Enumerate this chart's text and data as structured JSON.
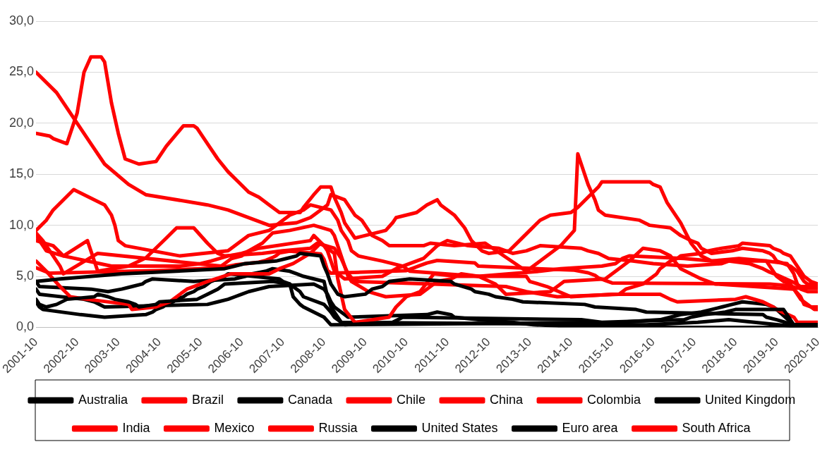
{
  "chart_data": {
    "type": "line",
    "legend": "bottom",
    "grid": "y",
    "marker": "none",
    "line_style": "solid",
    "xlim": [
      "2001-10",
      "2020-10"
    ],
    "xticks": [
      "2001-10",
      "2002-10",
      "2003-10",
      "2004-10",
      "2005-10",
      "2006-10",
      "2007-10",
      "2008-10",
      "2009-10",
      "2010-10",
      "2011-10",
      "2012-10",
      "2013-10",
      "2014-10",
      "2015-10",
      "2016-10",
      "2017-10",
      "2018-10",
      "2019-10",
      "2020-10"
    ],
    "ylim": [
      0,
      30
    ],
    "yticks": [
      {
        "value": 0,
        "label": "0,0"
      },
      {
        "value": 5,
        "label": "5,0"
      },
      {
        "value": 10,
        "label": "10,0"
      },
      {
        "value": 15,
        "label": "15,0"
      },
      {
        "value": 20,
        "label": "20,0"
      },
      {
        "value": 25,
        "label": "25,0"
      },
      {
        "value": 30,
        "label": "30,0"
      }
    ],
    "series": [
      {
        "name": "Australia",
        "color": "#000000",
        "x": [
          "2001-10",
          "2002-05",
          "2003-11",
          "2005-03",
          "2006-05",
          "2006-08",
          "2006-11",
          "2007-08",
          "2007-11",
          "2008-02",
          "2008-03",
          "2008-09",
          "2008-10",
          "2008-11",
          "2008-12",
          "2009-02",
          "2009-04",
          "2009-10",
          "2009-12",
          "2010-03",
          "2010-05",
          "2010-11",
          "2011-11",
          "2011-12",
          "2012-05",
          "2012-06",
          "2012-10",
          "2012-12",
          "2013-05",
          "2013-08",
          "2015-02",
          "2015-05",
          "2016-05",
          "2016-08",
          "2019-06",
          "2019-07",
          "2019-10",
          "2020-03",
          "2020-10"
        ],
        "values": [
          4.5,
          4.75,
          5.25,
          5.5,
          5.75,
          6.0,
          6.25,
          6.5,
          6.75,
          7.0,
          7.25,
          7.0,
          6.0,
          5.25,
          4.25,
          3.25,
          3.0,
          3.25,
          3.75,
          4.0,
          4.5,
          4.75,
          4.5,
          4.25,
          3.75,
          3.5,
          3.25,
          3.0,
          2.75,
          2.5,
          2.25,
          2.0,
          1.75,
          1.5,
          1.25,
          1.0,
          0.75,
          0.25,
          0.25
        ]
      },
      {
        "name": "Brazil",
        "color": "#ff0000",
        "x": [
          "2001-10",
          "2002-02",
          "2002-03",
          "2002-07",
          "2002-10",
          "2002-12",
          "2003-02",
          "2003-05",
          "2003-06",
          "2003-08",
          "2003-10",
          "2003-12",
          "2004-04",
          "2004-09",
          "2004-12",
          "2005-05",
          "2005-08",
          "2005-09",
          "2005-12",
          "2006-03",
          "2006-06",
          "2006-09",
          "2006-12",
          "2007-03",
          "2007-06",
          "2007-09",
          "2008-03",
          "2008-04",
          "2008-07",
          "2008-09",
          "2008-12",
          "2009-01",
          "2009-03",
          "2009-04",
          "2009-06",
          "2009-07",
          "2010-04",
          "2010-06",
          "2010-07",
          "2011-01",
          "2011-04",
          "2011-07",
          "2011-08",
          "2011-10",
          "2011-12",
          "2012-03",
          "2012-05",
          "2012-08",
          "2012-10",
          "2013-04",
          "2013-07",
          "2013-10",
          "2014-01",
          "2014-04",
          "2014-10",
          "2014-12",
          "2015-03",
          "2015-06",
          "2015-07",
          "2016-09",
          "2016-10",
          "2016-12",
          "2017-02",
          "2017-04",
          "2017-06",
          "2017-09",
          "2017-12",
          "2018-03",
          "2019-07",
          "2019-08",
          "2019-10",
          "2019-12",
          "2020-02",
          "2020-03",
          "2020-05",
          "2020-06",
          "2020-08",
          "2020-10"
        ],
        "values": [
          19.0,
          18.75,
          18.5,
          18.0,
          21.0,
          25.0,
          26.5,
          26.5,
          26.0,
          22.0,
          19.0,
          16.5,
          16.0,
          16.25,
          17.75,
          19.75,
          19.75,
          19.5,
          18.0,
          16.5,
          15.25,
          14.25,
          13.25,
          12.75,
          12.0,
          11.25,
          11.25,
          11.75,
          13.0,
          13.75,
          13.75,
          12.75,
          11.25,
          10.25,
          9.25,
          8.75,
          9.5,
          10.25,
          10.75,
          11.25,
          12.0,
          12.5,
          12.0,
          11.5,
          11.0,
          9.75,
          8.5,
          7.5,
          7.25,
          7.5,
          8.5,
          9.5,
          10.5,
          11.0,
          11.25,
          11.75,
          12.75,
          13.75,
          14.25,
          14.25,
          14.0,
          13.75,
          12.25,
          11.25,
          10.25,
          8.25,
          7.0,
          6.5,
          6.5,
          6.0,
          5.0,
          4.5,
          4.25,
          3.75,
          3.0,
          2.25,
          2.0,
          2.0
        ]
      },
      {
        "name": "Canada",
        "color": "#000000",
        "x": [
          "2001-10",
          "2001-11",
          "2002-01",
          "2002-04",
          "2002-07",
          "2003-03",
          "2003-04",
          "2003-07",
          "2003-09",
          "2004-01",
          "2004-03",
          "2004-04",
          "2004-09",
          "2004-10",
          "2005-09",
          "2005-12",
          "2006-03",
          "2006-05",
          "2007-07",
          "2007-12",
          "2008-03",
          "2008-04",
          "2008-10",
          "2008-12",
          "2009-01",
          "2009-03",
          "2009-04",
          "2010-06",
          "2010-09",
          "2015-01",
          "2015-07",
          "2017-07",
          "2017-09",
          "2018-01",
          "2018-07",
          "2018-10",
          "2019-12",
          "2020-03",
          "2020-10"
        ],
        "values": [
          2.75,
          2.25,
          2.0,
          2.25,
          2.75,
          3.0,
          3.25,
          3.0,
          2.75,
          2.5,
          2.25,
          2.0,
          2.25,
          2.5,
          2.75,
          3.25,
          3.75,
          4.25,
          4.5,
          4.25,
          3.5,
          3.0,
          2.25,
          1.5,
          1.0,
          0.5,
          0.25,
          0.5,
          1.0,
          0.75,
          0.5,
          0.75,
          1.0,
          1.25,
          1.5,
          1.75,
          1.75,
          0.25,
          0.25
        ]
      },
      {
        "name": "Chile",
        "color": "#ff0000",
        "x": [
          "2001-10",
          "2002-01",
          "2002-05",
          "2002-08",
          "2003-01",
          "2004-01",
          "2004-02",
          "2004-09",
          "2005-01",
          "2005-06",
          "2005-12",
          "2006-07",
          "2007-06",
          "2007-09",
          "2008-01",
          "2008-06",
          "2008-09",
          "2009-01",
          "2009-02",
          "2009-04",
          "2009-07",
          "2010-05",
          "2010-07",
          "2010-10",
          "2011-02",
          "2011-06",
          "2012-01",
          "2013-09",
          "2013-10",
          "2014-03",
          "2014-10",
          "2015-10",
          "2016-12",
          "2017-03",
          "2017-05",
          "2018-10",
          "2019-01",
          "2019-06",
          "2019-09",
          "2019-10",
          "2020-03",
          "2020-04",
          "2020-10"
        ],
        "values": [
          6.5,
          5.5,
          4.0,
          3.0,
          2.75,
          2.25,
          1.75,
          2.0,
          2.5,
          3.75,
          4.5,
          5.25,
          5.25,
          5.75,
          6.25,
          7.25,
          8.25,
          7.25,
          4.75,
          1.75,
          0.5,
          1.0,
          2.0,
          3.0,
          3.5,
          5.25,
          5.0,
          5.0,
          4.5,
          4.0,
          3.0,
          3.25,
          3.25,
          2.75,
          2.5,
          2.75,
          3.0,
          2.5,
          2.0,
          1.75,
          1.0,
          0.5,
          0.5
        ]
      },
      {
        "name": "China",
        "color": "#ff0000",
        "x": [
          "2001-10",
          "2002-02",
          "2004-10",
          "2006-04",
          "2006-08",
          "2007-03",
          "2007-05",
          "2007-07",
          "2007-08",
          "2007-09",
          "2007-12",
          "2008-09",
          "2008-10",
          "2008-11",
          "2008-12",
          "2010-10",
          "2010-12",
          "2011-02",
          "2011-04",
          "2011-07",
          "2012-06",
          "2012-07",
          "2014-11",
          "2015-03",
          "2015-05",
          "2015-06",
          "2015-08",
          "2015-10",
          "2019-08",
          "2019-11",
          "2020-02",
          "2020-04",
          "2020-10"
        ],
        "values": [
          5.85,
          5.31,
          5.58,
          5.85,
          6.12,
          6.39,
          6.57,
          6.84,
          7.02,
          7.29,
          7.47,
          7.2,
          6.66,
          5.58,
          5.31,
          5.56,
          5.81,
          6.06,
          6.31,
          6.56,
          6.31,
          6.0,
          5.6,
          5.35,
          5.1,
          4.85,
          4.6,
          4.35,
          4.25,
          4.15,
          4.05,
          3.85,
          3.85
        ]
      },
      {
        "name": "Colombia",
        "color": "#ff0000",
        "x": [
          "2001-10",
          "2001-12",
          "2002-03",
          "2002-05",
          "2002-06",
          "2003-04",
          "2006-04",
          "2006-05",
          "2006-07",
          "2006-10",
          "2006-12",
          "2007-04",
          "2007-07",
          "2007-12",
          "2008-07",
          "2008-12",
          "2009-01",
          "2009-03",
          "2009-05",
          "2009-06",
          "2009-11",
          "2010-04",
          "2011-02",
          "2011-07",
          "2011-11",
          "2012-02",
          "2012-07",
          "2012-12",
          "2013-03",
          "2014-04",
          "2014-08",
          "2015-08",
          "2015-10",
          "2015-12",
          "2016-03",
          "2016-07",
          "2016-12",
          "2017-03",
          "2017-06",
          "2017-09",
          "2017-12",
          "2018-04",
          "2020-03",
          "2020-05",
          "2020-09",
          "2020-10"
        ],
        "values": [
          9.25,
          8.5,
          7.0,
          6.0,
          5.25,
          7.25,
          6.0,
          6.25,
          6.75,
          7.0,
          7.5,
          8.25,
          9.25,
          9.5,
          10.0,
          9.5,
          9.0,
          7.0,
          5.0,
          4.5,
          3.5,
          3.0,
          3.25,
          4.5,
          4.75,
          5.25,
          5.0,
          4.25,
          3.25,
          3.5,
          4.5,
          4.75,
          5.25,
          5.75,
          6.5,
          7.75,
          7.5,
          7.0,
          5.75,
          5.25,
          4.75,
          4.25,
          3.75,
          2.75,
          1.75,
          1.75
        ]
      },
      {
        "name": "United Kingdom",
        "color": "#000000",
        "x": [
          "2001-10",
          "2001-11",
          "2003-02",
          "2003-07",
          "2003-11",
          "2004-02",
          "2004-05",
          "2004-06",
          "2004-08",
          "2005-08",
          "2006-08",
          "2006-11",
          "2007-01",
          "2007-05",
          "2007-07",
          "2007-12",
          "2008-02",
          "2008-04",
          "2008-10",
          "2008-11",
          "2008-12",
          "2009-01",
          "2009-02",
          "2009-03",
          "2016-08",
          "2017-11",
          "2018-08",
          "2020-03",
          "2020-10"
        ],
        "values": [
          4.5,
          4.0,
          3.75,
          3.5,
          3.75,
          4.0,
          4.25,
          4.5,
          4.75,
          4.5,
          4.75,
          5.0,
          5.25,
          5.5,
          5.75,
          5.5,
          5.25,
          5.0,
          4.5,
          3.0,
          2.0,
          1.5,
          1.0,
          0.5,
          0.25,
          0.5,
          0.75,
          0.1,
          0.1
        ]
      },
      {
        "name": "India",
        "color": "#ff0000",
        "x": [
          "2001-10",
          "2002-03",
          "2002-06",
          "2003-08",
          "2005-04",
          "2005-10",
          "2006-01",
          "2006-06",
          "2006-10",
          "2007-03",
          "2008-06",
          "2008-07",
          "2008-10",
          "2008-11",
          "2008-12",
          "2009-01",
          "2009-03",
          "2009-04",
          "2010-03",
          "2010-07",
          "2010-11",
          "2011-03",
          "2011-07",
          "2011-10",
          "2012-04",
          "2013-01",
          "2013-05",
          "2013-09",
          "2014-01",
          "2015-01",
          "2015-03",
          "2015-06",
          "2015-09",
          "2016-04",
          "2016-10",
          "2017-08",
          "2018-06",
          "2018-08",
          "2019-02",
          "2019-04",
          "2019-06",
          "2019-08",
          "2019-10",
          "2020-03",
          "2020-05",
          "2020-10"
        ],
        "values": [
          8.5,
          8.0,
          7.0,
          6.0,
          6.0,
          6.25,
          6.5,
          7.0,
          7.25,
          7.75,
          8.5,
          9.0,
          8.0,
          7.5,
          6.5,
          5.5,
          5.0,
          4.75,
          5.0,
          5.75,
          6.25,
          6.75,
          8.0,
          8.5,
          8.0,
          7.75,
          7.25,
          7.5,
          8.0,
          7.75,
          7.5,
          7.25,
          6.75,
          6.5,
          6.25,
          6.0,
          6.25,
          6.5,
          6.25,
          6.0,
          5.75,
          5.4,
          5.15,
          4.4,
          4.0,
          4.0
        ]
      },
      {
        "name": "Mexico",
        "color": "#ff0000",
        "x": [
          "2001-10",
          "2002-01",
          "2002-06",
          "2003-01",
          "2003-04",
          "2004-01",
          "2004-06",
          "2004-12",
          "2005-03",
          "2005-08",
          "2005-12",
          "2006-03",
          "2006-05",
          "2007-04",
          "2007-10",
          "2008-06",
          "2008-08",
          "2009-01",
          "2009-03",
          "2009-05",
          "2009-07",
          "2013-03",
          "2013-09",
          "2014-06",
          "2015-12",
          "2016-02",
          "2016-07",
          "2016-09",
          "2016-11",
          "2016-12",
          "2017-02",
          "2017-03",
          "2017-05",
          "2017-06",
          "2017-12",
          "2018-02",
          "2018-06",
          "2018-11",
          "2018-12",
          "2019-08",
          "2019-09",
          "2019-11",
          "2019-12",
          "2020-02",
          "2020-03",
          "2020-04",
          "2020-05",
          "2020-06",
          "2020-08",
          "2020-10"
        ],
        "values": [
          9.0,
          7.5,
          7.0,
          8.5,
          5.5,
          6.0,
          6.8,
          8.75,
          9.75,
          9.75,
          8.25,
          7.25,
          7.0,
          7.25,
          7.5,
          7.75,
          8.25,
          7.75,
          6.75,
          5.25,
          4.5,
          4.0,
          3.5,
          3.0,
          3.25,
          3.75,
          4.25,
          4.75,
          5.25,
          5.75,
          6.25,
          6.5,
          6.75,
          7.0,
          7.25,
          7.5,
          7.75,
          8.0,
          8.25,
          8.0,
          7.75,
          7.5,
          7.25,
          7.0,
          6.5,
          6.0,
          5.5,
          5.0,
          4.5,
          4.25
        ]
      },
      {
        "name": "Russia",
        "color": "#ff0000",
        "x": [
          "2001-10",
          "2002-04",
          "2002-08",
          "2003-02",
          "2003-06",
          "2004-01",
          "2004-06",
          "2005-12",
          "2006-06",
          "2006-10",
          "2007-06",
          "2008-02",
          "2008-04",
          "2008-06",
          "2008-07",
          "2008-11",
          "2008-12",
          "2009-04",
          "2009-05",
          "2009-06",
          "2009-07",
          "2009-08",
          "2009-09",
          "2009-10",
          "2009-11",
          "2009-12",
          "2010-03",
          "2010-05",
          "2011-03",
          "2011-05",
          "2011-12",
          "2012-09",
          "2013-09",
          "2014-03",
          "2014-07",
          "2014-11",
          "2014-12",
          "2015-02",
          "2015-03",
          "2015-05",
          "2015-06",
          "2015-08",
          "2016-06",
          "2016-09",
          "2017-03",
          "2017-05",
          "2017-06",
          "2017-09",
          "2017-11",
          "2017-12",
          "2018-03",
          "2018-09",
          "2018-12",
          "2019-06",
          "2019-08",
          "2019-09",
          "2019-10",
          "2019-12",
          "2020-02",
          "2020-04",
          "2020-06",
          "2020-07",
          "2020-10"
        ],
        "values": [
          25.0,
          23.0,
          21.0,
          18.0,
          16.0,
          14.0,
          13.0,
          12.0,
          11.5,
          11.0,
          10.0,
          10.25,
          10.5,
          10.75,
          11.0,
          12.0,
          13.0,
          12.5,
          12.0,
          11.5,
          11.0,
          10.75,
          10.5,
          10.0,
          9.5,
          9.0,
          8.5,
          8.0,
          8.0,
          8.25,
          8.0,
          8.25,
          5.5,
          7.0,
          8.0,
          9.5,
          17.0,
          15.0,
          14.0,
          12.5,
          11.5,
          11.0,
          10.5,
          10.0,
          9.75,
          9.25,
          9.0,
          8.5,
          8.25,
          7.75,
          7.25,
          7.5,
          7.75,
          7.5,
          7.25,
          7.0,
          6.5,
          6.25,
          6.0,
          5.5,
          4.5,
          4.25,
          4.25
        ]
      },
      {
        "name": "United States",
        "color": "#000000",
        "x": [
          "2001-10",
          "2001-11",
          "2001-12",
          "2002-11",
          "2003-06",
          "2004-06",
          "2004-08",
          "2004-09",
          "2004-11",
          "2004-12",
          "2005-02",
          "2005-03",
          "2005-05",
          "2005-06",
          "2005-08",
          "2005-09",
          "2005-11",
          "2005-12",
          "2006-01",
          "2006-03",
          "2006-05",
          "2006-06",
          "2007-09",
          "2007-10",
          "2007-12",
          "2008-01",
          "2008-03",
          "2008-04",
          "2008-10",
          "2008-12",
          "2015-12",
          "2016-12",
          "2017-03",
          "2017-06",
          "2017-12",
          "2018-03",
          "2018-06",
          "2018-09",
          "2018-12",
          "2019-07",
          "2019-09",
          "2019-10",
          "2020-03",
          "2020-10"
        ],
        "values": [
          2.5,
          2.0,
          1.75,
          1.25,
          1.0,
          1.25,
          1.5,
          1.75,
          2.0,
          2.25,
          2.5,
          2.75,
          3.0,
          3.25,
          3.5,
          3.75,
          4.0,
          4.25,
          4.5,
          4.75,
          5.0,
          5.25,
          4.75,
          4.5,
          4.25,
          3.0,
          2.25,
          2.0,
          1.0,
          0.25,
          0.5,
          0.75,
          1.0,
          1.25,
          1.5,
          1.75,
          2.0,
          2.25,
          2.5,
          2.25,
          2.0,
          1.75,
          0.25,
          0.25
        ]
      },
      {
        "name": "Euro area",
        "color": "#000000",
        "x": [
          "2001-10",
          "2001-11",
          "2002-12",
          "2003-03",
          "2003-06",
          "2005-12",
          "2006-03",
          "2006-06",
          "2006-08",
          "2006-10",
          "2006-12",
          "2007-03",
          "2007-06",
          "2008-07",
          "2008-10",
          "2008-11",
          "2008-12",
          "2009-01",
          "2009-03",
          "2009-04",
          "2009-05",
          "2011-04",
          "2011-07",
          "2011-11",
          "2011-12",
          "2012-07",
          "2013-05",
          "2013-11",
          "2014-06",
          "2014-09",
          "2016-03",
          "2020-10"
        ],
        "values": [
          3.75,
          3.25,
          2.75,
          2.5,
          2.0,
          2.25,
          2.5,
          2.75,
          3.0,
          3.25,
          3.5,
          3.75,
          4.0,
          4.25,
          3.75,
          3.25,
          2.5,
          2.0,
          1.5,
          1.25,
          1.0,
          1.25,
          1.5,
          1.25,
          1.0,
          0.75,
          0.5,
          0.25,
          0.15,
          0.05,
          0.0,
          0.0
        ]
      },
      {
        "name": "South Africa",
        "color": "#ff0000",
        "x": [
          "2001-10",
          "2002-01",
          "2002-03",
          "2002-06",
          "2002-09",
          "2003-06",
          "2003-08",
          "2003-09",
          "2003-10",
          "2003-12",
          "2004-08",
          "2005-04",
          "2006-06",
          "2006-08",
          "2006-10",
          "2006-12",
          "2007-06",
          "2007-08",
          "2007-10",
          "2007-12",
          "2008-04",
          "2008-06",
          "2008-12",
          "2009-02",
          "2009-03",
          "2009-05",
          "2009-06",
          "2009-08",
          "2010-03",
          "2010-09",
          "2010-11",
          "2012-07",
          "2014-01",
          "2014-07",
          "2015-07",
          "2015-11",
          "2016-01",
          "2016-03",
          "2017-07",
          "2018-03",
          "2018-11",
          "2019-07",
          "2020-01",
          "2020-03",
          "2020-04",
          "2020-05",
          "2020-07",
          "2020-10"
        ],
        "values": [
          9.5,
          10.5,
          11.5,
          12.5,
          13.5,
          12.0,
          11.0,
          10.0,
          8.5,
          8.0,
          7.5,
          7.0,
          7.5,
          8.0,
          8.5,
          9.0,
          9.5,
          10.0,
          10.5,
          11.0,
          11.5,
          12.0,
          11.5,
          10.5,
          9.5,
          8.5,
          7.5,
          7.0,
          6.5,
          6.0,
          5.5,
          5.0,
          5.5,
          5.75,
          6.0,
          6.25,
          6.75,
          7.0,
          6.75,
          6.5,
          6.75,
          6.5,
          6.25,
          5.25,
          4.25,
          3.75,
          3.5,
          3.5
        ]
      }
    ]
  }
}
